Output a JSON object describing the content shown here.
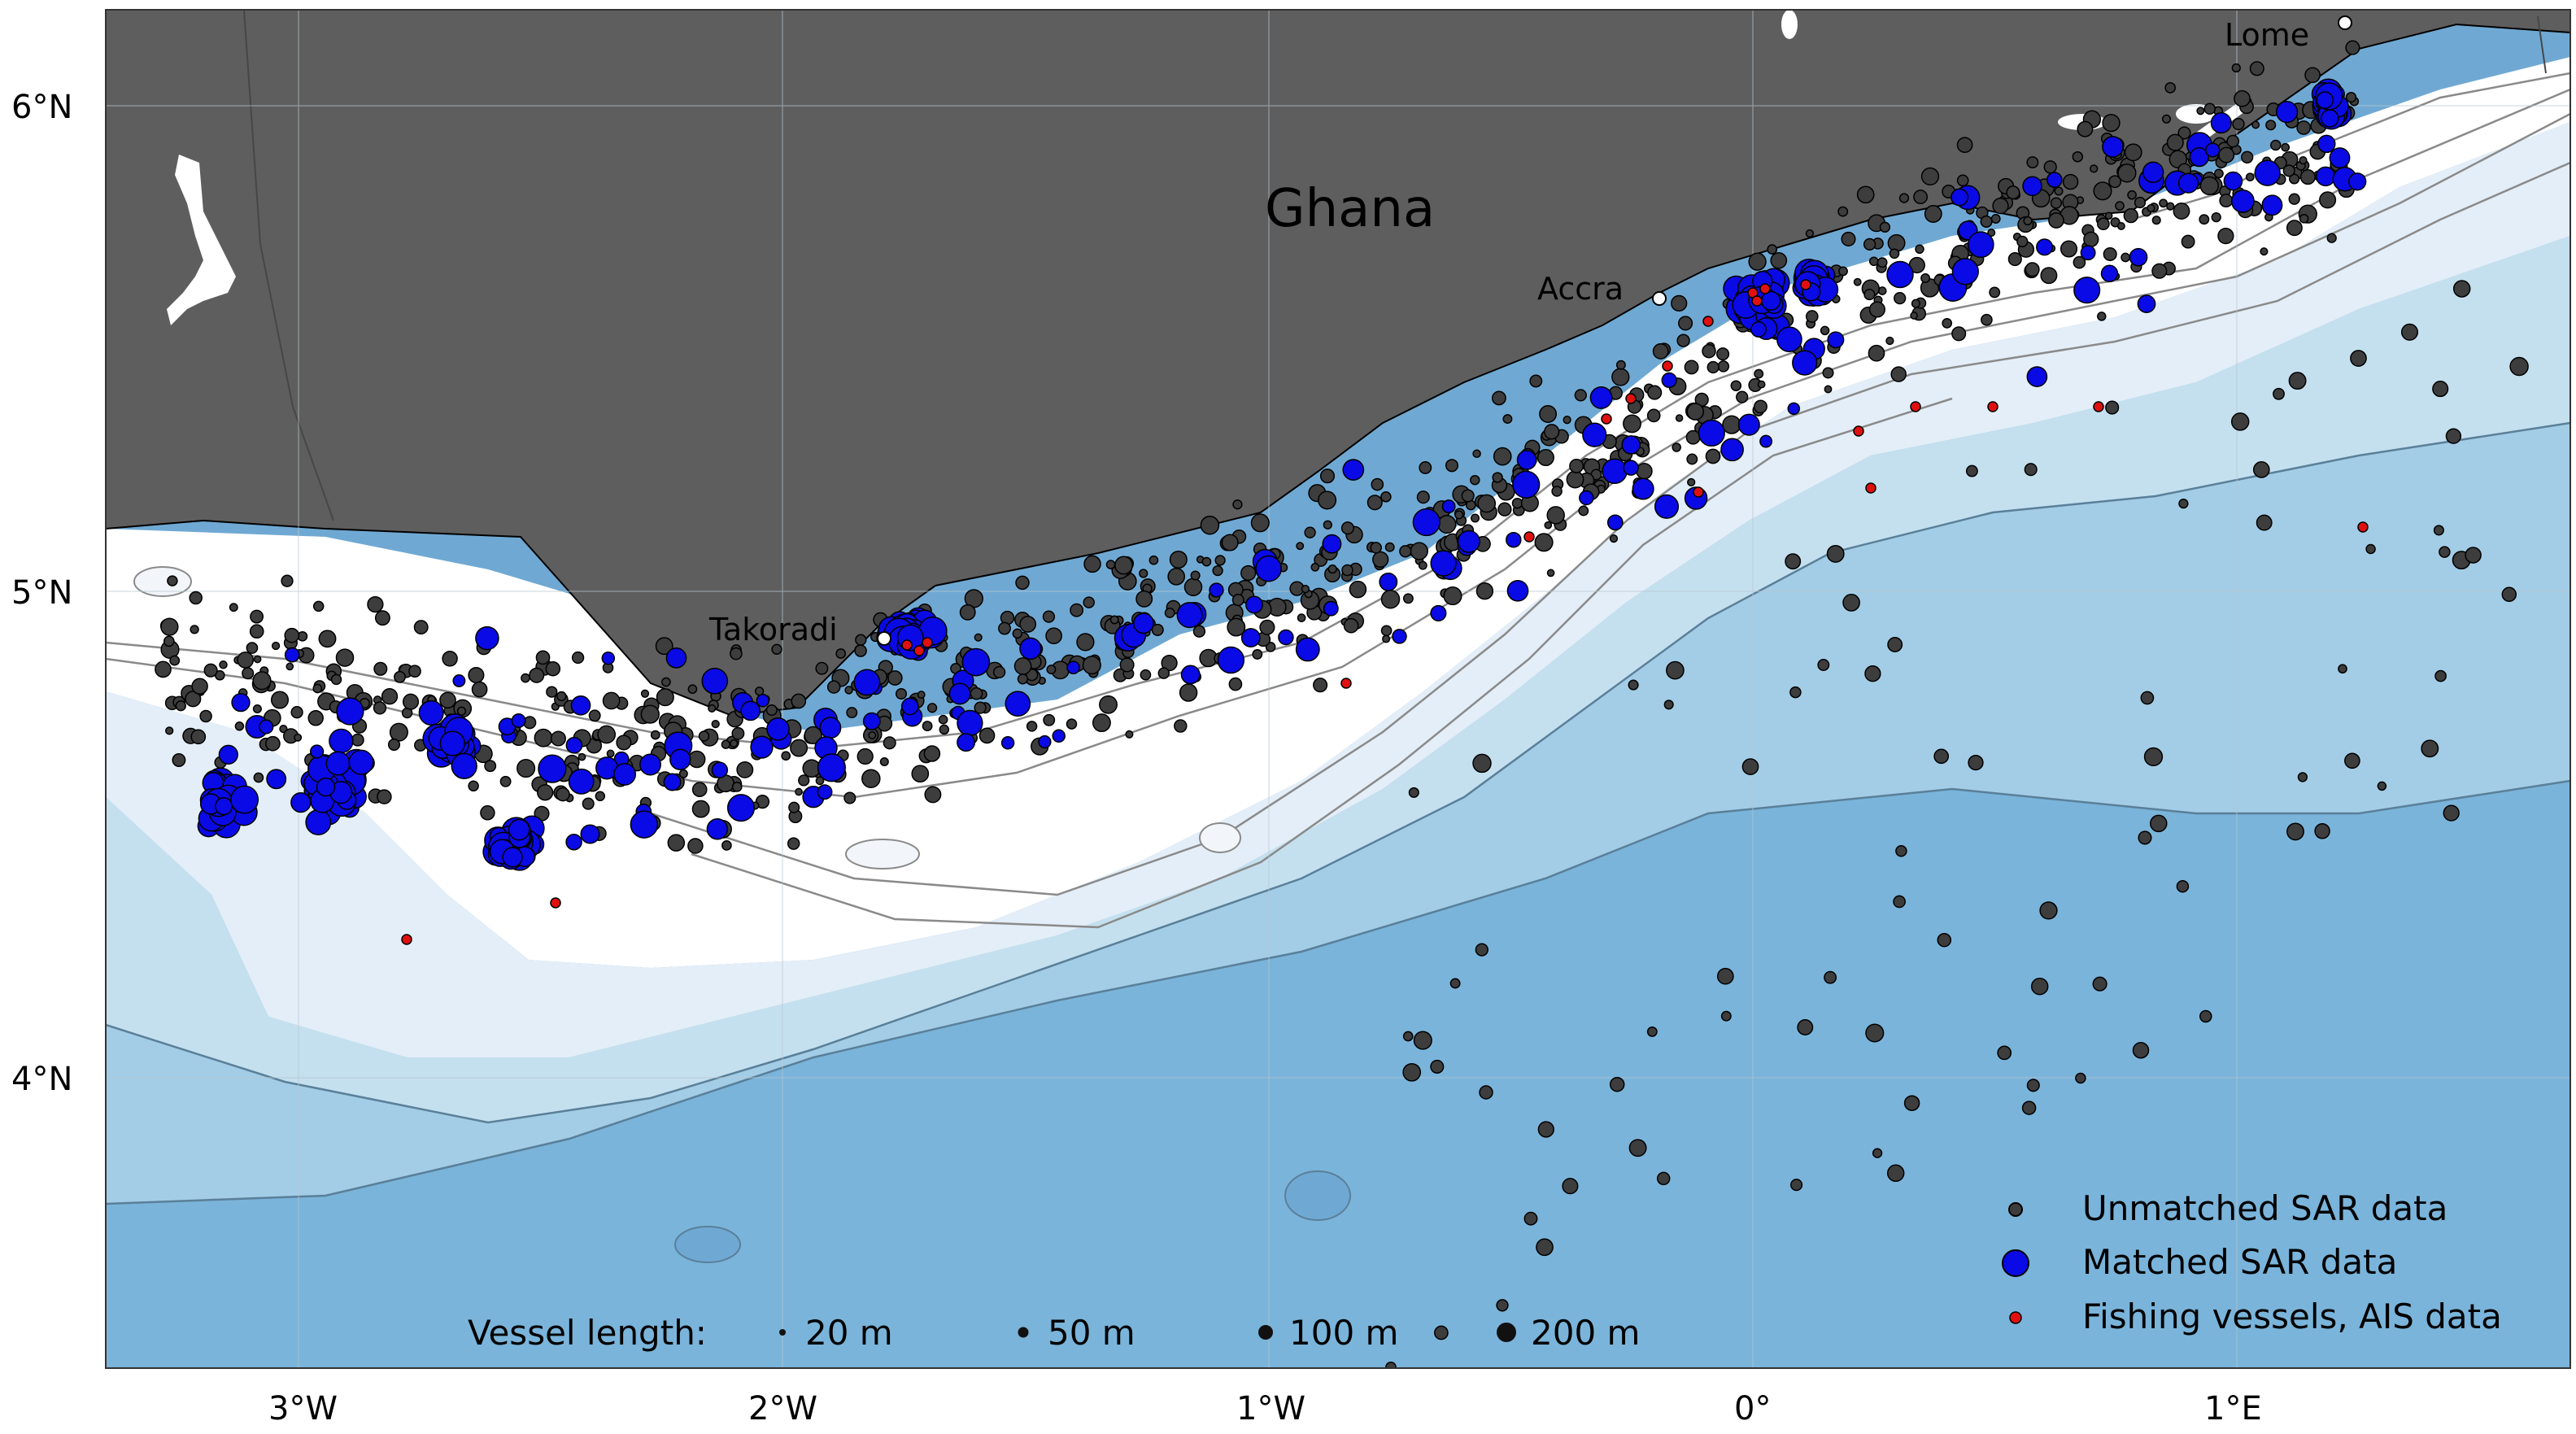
{
  "map": {
    "country_label": "Ghana",
    "places": [
      {
        "name": "Takoradi"
      },
      {
        "name": "Accra"
      },
      {
        "name": "Lome"
      }
    ],
    "lat_labels": [
      "6°N",
      "5°N",
      "4°N"
    ],
    "lon_labels": [
      "3°W",
      "2°W",
      "1°W",
      "0°",
      "1°E"
    ],
    "colors": {
      "land": "#5e5e5e",
      "shelf": "#ffffff",
      "depth_1": "#e3eef8",
      "depth_2": "#c4e0ef",
      "depth_3": "#a3cde6",
      "depth_4": "#7ab4da",
      "unmatched": "#3d3d3d",
      "matched": "#0a0ae6",
      "fishing_ais": "#e01010"
    }
  },
  "legend": {
    "entries": [
      {
        "label": "Unmatched SAR data",
        "color": "#3d3d3d"
      },
      {
        "label": "Matched SAR data",
        "color": "#0a0ae6"
      },
      {
        "label": "Fishing vessels, AIS data",
        "color": "#e01010"
      }
    ],
    "size_title": "Vessel length:",
    "sizes": [
      {
        "label": "20 m"
      },
      {
        "label": "50 m"
      },
      {
        "label": "100 m"
      },
      {
        "label": "200 m"
      }
    ]
  }
}
